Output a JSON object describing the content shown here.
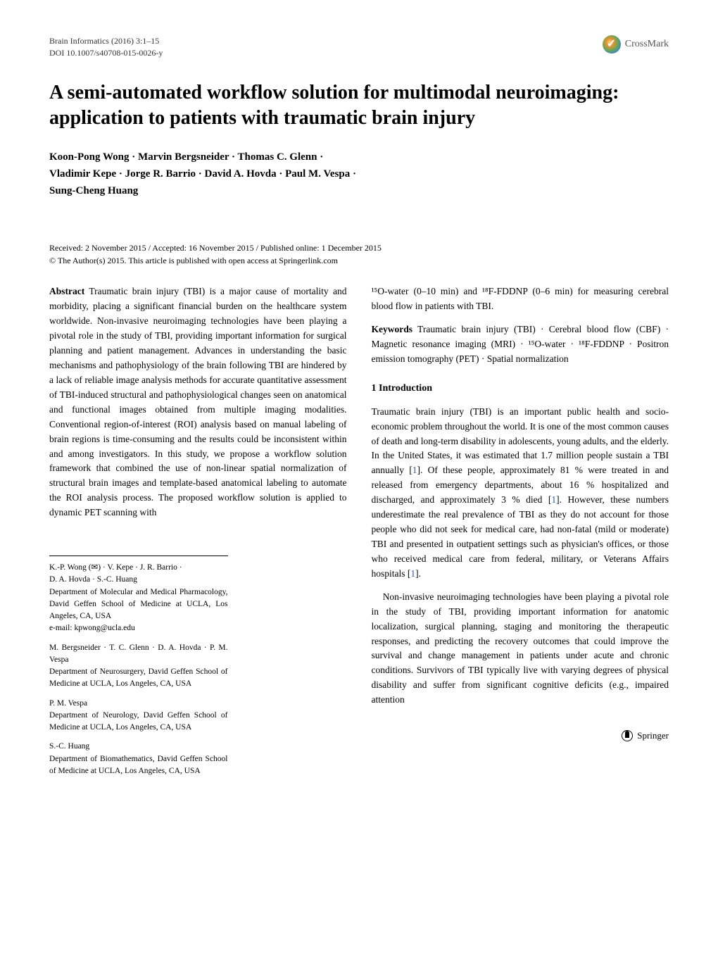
{
  "header": {
    "journal_line": "Brain Informatics (2016) 3:1–15",
    "doi_line": "DOI 10.1007/s40708-015-0026-y",
    "crossmark_label": "CrossMark"
  },
  "title": "A semi-automated workflow solution for multimodal neuroimaging: application to patients with traumatic brain injury",
  "authors_line1": "Koon-Pong Wong · Marvin Bergsneider · Thomas C. Glenn ·",
  "authors_line2": "Vladimir Kepe · Jorge R. Barrio · David A. Hovda · Paul M. Vespa ·",
  "authors_line3": "Sung-Cheng Huang",
  "dates": {
    "line1": "Received: 2 November 2015 / Accepted: 16 November 2015 / Published online: 1 December 2015",
    "line2": "© The Author(s) 2015. This article is published with open access at Springerlink.com"
  },
  "abstract": {
    "label": "Abstract",
    "text": " Traumatic brain injury (TBI) is a major cause of mortality and morbidity, placing a significant financial burden on the healthcare system worldwide. Non-invasive neuroimaging technologies have been playing a pivotal role in the study of TBI, providing important information for surgical planning and patient management. Advances in understanding the basic mechanisms and pathophysiology of the brain following TBI are hindered by a lack of reliable image analysis methods for accurate quantitative assessment of TBI-induced structural and pathophysiological changes seen on anatomical and functional images obtained from multiple imaging modalities. Conventional region-of-interest (ROI) analysis based on manual labeling of brain regions is time-consuming and the results could be inconsistent within and among investigators. In this study, we propose a workflow solution framework that combined the use of non-linear spatial normalization of structural brain images and template-based anatomical labeling to automate the ROI analysis process. The proposed workflow solution is applied to dynamic PET scanning with "
  },
  "abstract_right": "¹⁵O-water (0–10 min) and ¹⁸F-FDDNP (0–6 min) for measuring cerebral blood flow in patients with TBI.",
  "keywords": {
    "label": "Keywords",
    "text": " Traumatic brain injury (TBI) · Cerebral blood flow (CBF) · Magnetic resonance imaging (MRI) · ¹⁵O-water · ¹⁸F-FDDNP · Positron emission tomography (PET) · Spatial normalization"
  },
  "intro": {
    "heading": "1 Introduction",
    "p1a": "Traumatic brain injury (TBI) is an important public health and socio-economic problem throughout the world. It is one of the most common causes of death and long-term disability in adolescents, young adults, and the elderly. In the United States, it was estimated that 1.7 million people sustain a TBI annually [",
    "r1": "1",
    "p1b": "]. Of these people, approximately 81 % were treated in and released from emergency departments, about 16 % hospitalized and discharged, and approximately 3 % died [",
    "r2": "1",
    "p1c": "]. However, these numbers underestimate the real prevalence of TBI as they do not account for those people who did not seek for medical care, had non-fatal (mild or moderate) TBI and presented in outpatient settings such as physician's offices, or those who received medical care from federal, military, or Veterans Affairs hospitals [",
    "r3": "1",
    "p1d": "].",
    "p2": "Non-invasive neuroimaging technologies have been playing a pivotal role in the study of TBI, providing important information for anatomic localization, surgical planning, staging and monitoring the therapeutic responses, and predicting the recovery outcomes that could improve the survival and change management in patients under acute and chronic conditions. Survivors of TBI typically live with varying degrees of physical disability and suffer from significant cognitive deficits (e.g., impaired attention"
  },
  "affiliations": {
    "g1_names": "K.-P. Wong (✉) · V. Kepe · J. R. Barrio ·",
    "g1_names2": "D. A. Hovda · S.-C. Huang",
    "g1_dept": "Department of Molecular and Medical Pharmacology, David Geffen School of Medicine at UCLA, Los Angeles, CA, USA",
    "g1_email": "e-mail: kpwong@ucla.edu",
    "g2_names": "M. Bergsneider · T. C. Glenn · D. A. Hovda · P. M. Vespa",
    "g2_dept": "Department of Neurosurgery, David Geffen School of Medicine at UCLA, Los Angeles, CA, USA",
    "g3_names": "P. M. Vespa",
    "g3_dept": "Department of Neurology, David Geffen School of Medicine at UCLA, Los Angeles, CA, USA",
    "g4_names": "S.-C. Huang",
    "g4_dept": "Department of Biomathematics, David Geffen School of Medicine at UCLA, Los Angeles, CA, USA"
  },
  "footer": {
    "publisher": "Springer"
  },
  "colors": {
    "text": "#000000",
    "link": "#2a5db0",
    "background": "#ffffff"
  }
}
